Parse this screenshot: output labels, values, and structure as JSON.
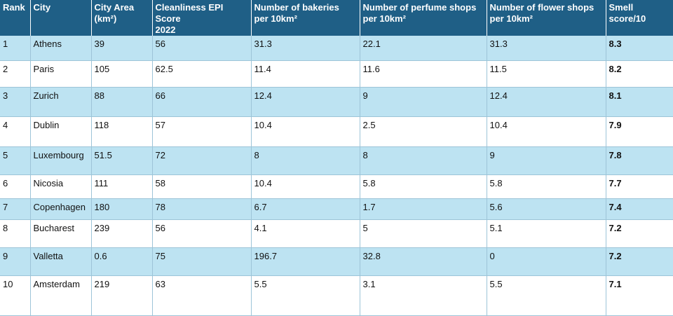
{
  "colors": {
    "header_bg": "#1f5f86",
    "band_bg": "#bde3f2",
    "plain_bg": "#ffffff"
  },
  "table": {
    "headers": {
      "rank": "Rank",
      "city": "City",
      "area_line1": "City Area",
      "area_line2": "(km²)",
      "epi_line1": "Cleanliness EPI Score",
      "epi_line2": "2022",
      "bakeries_line1": "Number of bakeries",
      "bakeries_line2": "per 10km²",
      "perfume_line1": "Number of perfume shops",
      "perfume_line2": "per 10km²",
      "flower_line1": "Number of flower shops",
      "flower_line2": "per 10km²",
      "smell_line1": "Smell",
      "smell_line2": "score/10"
    },
    "rows": [
      {
        "rank": "1",
        "city": "Athens",
        "area": "39",
        "epi": "56",
        "bakeries": "31.3",
        "perfume": "22.1",
        "flower": "31.3",
        "smell": "8.3"
      },
      {
        "rank": "2",
        "city": "Paris",
        "area": "105",
        "epi": "62.5",
        "bakeries": "11.4",
        "perfume": "11.6",
        "flower": "11.5",
        "smell": "8.2"
      },
      {
        "rank": "3",
        "city": "Zurich",
        "area": "88",
        "epi": "66",
        "bakeries": "12.4",
        "perfume": "9",
        "flower": "12.4",
        "smell": "8.1"
      },
      {
        "rank": "4",
        "city": "Dublin",
        "area": "118",
        "epi": "57",
        "bakeries": "10.4",
        "perfume": "2.5",
        "flower": "10.4",
        "smell": "7.9"
      },
      {
        "rank": "5",
        "city": "Luxembourg",
        "area": "51.5",
        "epi": "72",
        "bakeries": "8",
        "perfume": "8",
        "flower": "9",
        "smell": "7.8"
      },
      {
        "rank": "6",
        "city": "Nicosia",
        "area": "111",
        "epi": "58",
        "bakeries": "10.4",
        "perfume": "5.8",
        "flower": "5.8",
        "smell": "7.7"
      },
      {
        "rank": "7",
        "city": "Copenhagen",
        "area": "180",
        "epi": "78",
        "bakeries": "6.7",
        "perfume": "1.7",
        "flower": "5.6",
        "smell": "7.4"
      },
      {
        "rank": "8",
        "city": "Bucharest",
        "area": "239",
        "epi": "56",
        "bakeries": "4.1",
        "perfume": "5",
        "flower": "5.1",
        "smell": "7.2"
      },
      {
        "rank": "9",
        "city": "Valletta",
        "area": "0.6",
        "epi": "75",
        "bakeries": "196.7",
        "perfume": "32.8",
        "flower": "0",
        "smell": "7.2"
      },
      {
        "rank": "10",
        "city": "Amsterdam",
        "area": "219",
        "epi": "63",
        "bakeries": "5.5",
        "perfume": "3.1",
        "flower": "5.5",
        "smell": "7.1"
      }
    ]
  },
  "chart_data": {
    "type": "table",
    "columns": [
      "Rank",
      "City",
      "City Area (km²)",
      "Cleanliness EPI Score 2022",
      "Number of bakeries per 10km²",
      "Number of perfume shops per 10km²",
      "Number of flower shops per 10km²",
      "Smell score/10"
    ],
    "rows": [
      [
        "1",
        "Athens",
        "39",
        "56",
        "31.3",
        "22.1",
        "31.3",
        "8.3"
      ],
      [
        "2",
        "Paris",
        "105",
        "62.5",
        "11.4",
        "11.6",
        "11.5",
        "8.2"
      ],
      [
        "3",
        "Zurich",
        "88",
        "66",
        "12.4",
        "9",
        "12.4",
        "8.1"
      ],
      [
        "4",
        "Dublin",
        "118",
        "57",
        "10.4",
        "2.5",
        "10.4",
        "7.9"
      ],
      [
        "5",
        "Luxembourg",
        "51.5",
        "72",
        "8",
        "8",
        "9",
        "7.8"
      ],
      [
        "6",
        "Nicosia",
        "111",
        "58",
        "10.4",
        "5.8",
        "5.8",
        "7.7"
      ],
      [
        "7",
        "Copenhagen",
        "180",
        "78",
        "6.7",
        "1.7",
        "5.6",
        "7.4"
      ],
      [
        "8",
        "Bucharest",
        "239",
        "56",
        "4.1",
        "5",
        "5.1",
        "7.2"
      ],
      [
        "9",
        "Valletta",
        "0.6",
        "75",
        "196.7",
        "32.8",
        "0",
        "7.2"
      ],
      [
        "10",
        "Amsterdam",
        "219",
        "63",
        "5.5",
        "3.1",
        "5.5",
        "7.1"
      ]
    ]
  }
}
